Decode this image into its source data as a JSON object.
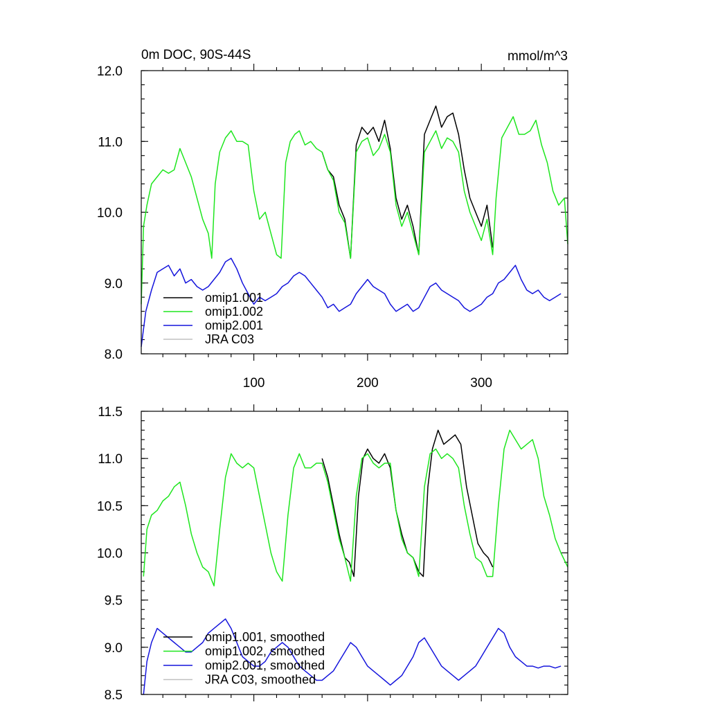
{
  "chart_data": [
    {
      "type": "line",
      "title": "0m DOC, 90S-44S",
      "units": "mmol/m^3",
      "xlim": [
        1,
        376
      ],
      "ylim": [
        8.0,
        12.0
      ],
      "xticks": [
        100,
        200,
        300
      ],
      "xtick_labels": [
        "100",
        "200",
        "300"
      ],
      "yticks": [
        8.0,
        9.0,
        10.0,
        11.0,
        12.0
      ],
      "ytick_labels": [
        "8.0",
        "9.0",
        "10.0",
        "11.0",
        "12.0"
      ],
      "grid": false,
      "legend_position": "bottom-left",
      "legend": [
        {
          "label": "omip1.001",
          "color": "#000000"
        },
        {
          "label": "omip1.002",
          "color": "#1ee61e"
        },
        {
          "label": "omip2.001",
          "color": "#1414dc"
        },
        {
          "label": "JRA C03",
          "color": "#c0c0c0"
        }
      ],
      "series": [
        {
          "name": "omip1.001",
          "color": "#000000",
          "x": [
            160,
            165,
            170,
            175,
            180,
            185,
            190,
            195,
            200,
            205,
            210,
            215,
            220,
            225,
            230,
            235,
            240,
            245,
            250,
            255,
            260,
            265,
            270,
            275,
            280,
            285,
            290,
            295,
            300,
            305,
            310
          ],
          "y": [
            10.85,
            10.6,
            10.5,
            10.1,
            9.9,
            9.35,
            10.95,
            11.2,
            11.1,
            11.2,
            11.0,
            11.3,
            10.9,
            10.2,
            9.9,
            10.1,
            9.8,
            9.4,
            11.1,
            11.3,
            11.5,
            11.2,
            11.35,
            11.4,
            11.1,
            10.6,
            10.2,
            10.0,
            9.8,
            10.1,
            9.5
          ]
        },
        {
          "name": "omip1.002",
          "color": "#1ee61e",
          "x": [
            1,
            3,
            6,
            10,
            15,
            20,
            25,
            30,
            35,
            40,
            45,
            50,
            55,
            60,
            63,
            66,
            70,
            75,
            80,
            85,
            90,
            95,
            100,
            105,
            110,
            115,
            120,
            124,
            128,
            132,
            136,
            140,
            145,
            150,
            155,
            160,
            165,
            170,
            175,
            180,
            185,
            190,
            195,
            200,
            205,
            210,
            215,
            220,
            225,
            230,
            235,
            240,
            245,
            250,
            255,
            260,
            265,
            270,
            275,
            280,
            285,
            290,
            295,
            300,
            305,
            310,
            313,
            318,
            323,
            328,
            333,
            338,
            343,
            348,
            353,
            358,
            363,
            368,
            373,
            376
          ],
          "y": [
            8.7,
            9.8,
            10.1,
            10.4,
            10.5,
            10.6,
            10.55,
            10.6,
            10.9,
            10.7,
            10.5,
            10.2,
            9.9,
            9.7,
            9.35,
            10.4,
            10.85,
            11.05,
            11.15,
            11.0,
            11.0,
            10.95,
            10.3,
            9.9,
            10.0,
            9.7,
            9.4,
            9.35,
            10.7,
            11.0,
            11.1,
            11.15,
            10.95,
            11.0,
            10.9,
            10.85,
            10.6,
            10.45,
            10.0,
            9.85,
            9.35,
            10.85,
            11.0,
            11.05,
            10.8,
            10.9,
            11.1,
            10.85,
            10.1,
            9.8,
            10.0,
            9.7,
            9.4,
            10.85,
            11.0,
            11.15,
            10.9,
            11.05,
            11.0,
            10.85,
            10.3,
            10.0,
            9.8,
            9.6,
            9.9,
            9.4,
            10.2,
            11.05,
            11.2,
            11.35,
            11.1,
            11.1,
            11.15,
            11.3,
            10.95,
            10.7,
            10.3,
            10.1,
            10.2,
            9.55
          ]
        },
        {
          "name": "omip2.001",
          "color": "#1414dc",
          "x": [
            1,
            5,
            10,
            15,
            20,
            25,
            30,
            35,
            40,
            45,
            50,
            55,
            60,
            65,
            70,
            75,
            80,
            85,
            90,
            95,
            100,
            105,
            110,
            115,
            120,
            125,
            130,
            135,
            140,
            145,
            150,
            155,
            160,
            165,
            170,
            175,
            180,
            185,
            190,
            195,
            200,
            205,
            210,
            215,
            220,
            225,
            230,
            235,
            240,
            245,
            250,
            255,
            260,
            265,
            270,
            275,
            280,
            285,
            290,
            295,
            300,
            305,
            310,
            315,
            320,
            325,
            330,
            335,
            340,
            345,
            350,
            355,
            360,
            365,
            370
          ],
          "y": [
            8.1,
            8.6,
            8.9,
            9.15,
            9.2,
            9.25,
            9.1,
            9.2,
            9.0,
            9.05,
            8.95,
            8.9,
            8.95,
            9.05,
            9.15,
            9.3,
            9.35,
            9.2,
            9.0,
            8.85,
            8.7,
            8.8,
            8.75,
            8.8,
            8.85,
            8.95,
            9.0,
            9.1,
            9.15,
            9.1,
            9.0,
            8.9,
            8.8,
            8.65,
            8.7,
            8.6,
            8.65,
            8.7,
            8.85,
            8.95,
            9.05,
            8.95,
            8.9,
            8.85,
            8.7,
            8.6,
            8.65,
            8.7,
            8.6,
            8.65,
            8.8,
            8.95,
            9.0,
            8.9,
            8.85,
            8.8,
            8.75,
            8.65,
            8.6,
            8.65,
            8.7,
            8.8,
            8.85,
            9.0,
            9.05,
            9.15,
            9.25,
            9.05,
            8.9,
            8.85,
            8.9,
            8.8,
            8.75,
            8.8,
            8.85
          ]
        }
      ]
    },
    {
      "type": "line",
      "title": "",
      "xlim": [
        1,
        376
      ],
      "ylim": [
        8.5,
        11.5
      ],
      "xticks": [
        100,
        200,
        300
      ],
      "xtick_labels": [],
      "yticks": [
        8.5,
        9.0,
        9.5,
        10.0,
        10.5,
        11.0,
        11.5
      ],
      "ytick_labels": [
        "8.5",
        "9.0",
        "9.5",
        "10.0",
        "10.5",
        "11.0",
        "11.5"
      ],
      "grid": false,
      "legend_position": "bottom-left",
      "legend": [
        {
          "label": "omip1.001, smoothed",
          "color": "#000000"
        },
        {
          "label": "omip1.002, smoothed",
          "color": "#1ee61e"
        },
        {
          "label": "omip2.001, smoothed",
          "color": "#1414dc"
        },
        {
          "label": "JRA C03, smoothed",
          "color": "#c0c0c0"
        }
      ],
      "series": [
        {
          "name": "omip1.001, smoothed",
          "color": "#000000",
          "x": [
            160,
            165,
            170,
            175,
            180,
            184,
            188,
            192,
            196,
            200,
            205,
            210,
            215,
            220,
            225,
            230,
            235,
            240,
            245,
            249,
            253,
            257,
            262,
            267,
            272,
            277,
            282,
            287,
            292,
            297,
            302,
            306,
            310
          ],
          "y": [
            11.0,
            10.8,
            10.5,
            10.2,
            9.95,
            9.9,
            9.75,
            10.6,
            11.0,
            11.1,
            11.0,
            10.95,
            11.05,
            10.9,
            10.45,
            10.2,
            10.0,
            9.95,
            9.8,
            9.75,
            10.7,
            11.1,
            11.3,
            11.15,
            11.2,
            11.25,
            11.15,
            10.7,
            10.4,
            10.1,
            10.0,
            9.95,
            9.85
          ]
        },
        {
          "name": "omip1.002, smoothed",
          "color": "#1ee61e",
          "x": [
            3,
            6,
            10,
            15,
            20,
            25,
            30,
            35,
            40,
            45,
            50,
            55,
            60,
            65,
            70,
            75,
            80,
            85,
            90,
            95,
            100,
            105,
            110,
            115,
            120,
            125,
            130,
            135,
            140,
            145,
            150,
            155,
            160,
            165,
            170,
            175,
            180,
            185,
            190,
            195,
            200,
            205,
            210,
            215,
            220,
            225,
            230,
            235,
            240,
            245,
            250,
            255,
            260,
            265,
            270,
            275,
            280,
            285,
            290,
            295,
            300,
            305,
            310,
            315,
            320,
            325,
            330,
            335,
            340,
            345,
            350,
            355,
            360,
            365,
            370,
            376
          ],
          "y": [
            9.75,
            10.25,
            10.4,
            10.45,
            10.55,
            10.6,
            10.7,
            10.75,
            10.5,
            10.2,
            10.0,
            9.85,
            9.8,
            9.65,
            10.25,
            10.8,
            11.05,
            10.95,
            10.9,
            10.95,
            10.9,
            10.6,
            10.3,
            10.0,
            9.8,
            9.7,
            10.4,
            10.9,
            11.05,
            10.9,
            10.9,
            10.95,
            10.95,
            10.75,
            10.45,
            10.15,
            9.95,
            9.7,
            10.6,
            11.0,
            11.05,
            10.95,
            10.9,
            10.95,
            10.95,
            10.45,
            10.15,
            10.0,
            9.95,
            9.75,
            10.7,
            11.05,
            11.1,
            11.0,
            11.05,
            11.0,
            10.9,
            10.5,
            10.2,
            9.95,
            9.9,
            9.75,
            9.75,
            10.5,
            11.1,
            11.3,
            11.2,
            11.1,
            11.15,
            11.2,
            11.0,
            10.6,
            10.4,
            10.15,
            10.0,
            9.85
          ]
        },
        {
          "name": "omip2.001, smoothed",
          "color": "#1414dc",
          "x": [
            3,
            6,
            10,
            15,
            20,
            25,
            30,
            35,
            40,
            45,
            50,
            55,
            60,
            65,
            70,
            75,
            80,
            85,
            90,
            95,
            100,
            105,
            110,
            115,
            120,
            125,
            130,
            135,
            140,
            145,
            150,
            155,
            160,
            165,
            170,
            175,
            180,
            185,
            190,
            195,
            200,
            205,
            210,
            215,
            220,
            225,
            230,
            235,
            240,
            245,
            250,
            255,
            260,
            265,
            270,
            275,
            280,
            285,
            290,
            295,
            300,
            305,
            310,
            315,
            320,
            325,
            330,
            335,
            340,
            345,
            350,
            355,
            360,
            365,
            370
          ],
          "y": [
            8.5,
            8.85,
            9.05,
            9.2,
            9.15,
            9.1,
            9.05,
            9.0,
            8.95,
            8.95,
            9.0,
            9.05,
            9.15,
            9.2,
            9.25,
            9.3,
            9.2,
            9.05,
            8.9,
            8.85,
            8.8,
            8.8,
            8.85,
            8.95,
            9.0,
            9.05,
            9.0,
            8.9,
            8.8,
            8.75,
            8.7,
            8.65,
            8.65,
            8.7,
            8.75,
            8.85,
            8.95,
            9.05,
            9.0,
            8.9,
            8.8,
            8.75,
            8.7,
            8.65,
            8.6,
            8.65,
            8.7,
            8.8,
            8.9,
            9.05,
            9.1,
            9.0,
            8.9,
            8.8,
            8.75,
            8.7,
            8.65,
            8.7,
            8.75,
            8.8,
            8.9,
            9.0,
            9.1,
            9.2,
            9.15,
            9.0,
            8.9,
            8.85,
            8.8,
            8.8,
            8.78,
            8.8,
            8.8,
            8.78,
            8.8
          ]
        }
      ]
    }
  ]
}
